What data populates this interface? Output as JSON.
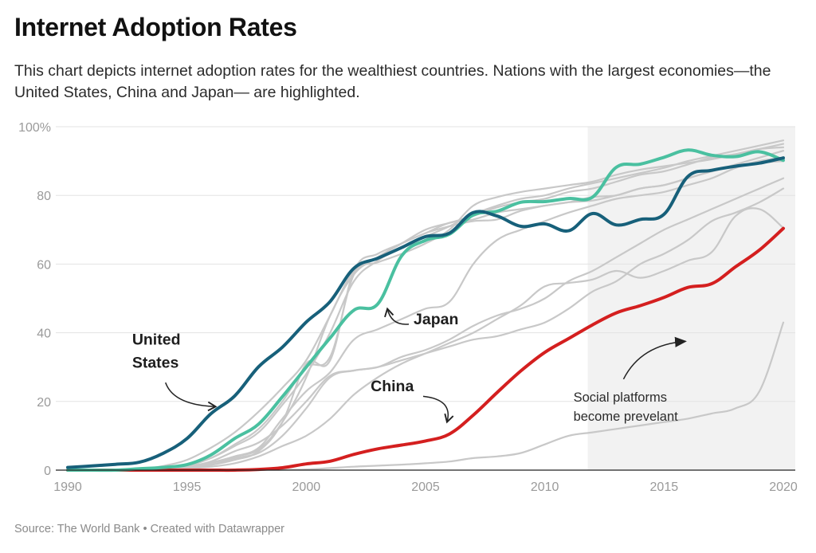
{
  "header": {
    "title": "Internet Adoption Rates",
    "subtitle": "This chart depicts internet adoption rates for the wealthiest countries. Nations with the largest economies—the United States, China and Japan— are highlighted."
  },
  "footer": {
    "source": "Source: The World Bank • Created with Datawrapper"
  },
  "chart_data": {
    "type": "line",
    "title": "Internet Adoption Rates",
    "xlabel": "",
    "ylabel": "",
    "x": [
      1990,
      1991,
      1992,
      1993,
      1994,
      1995,
      1996,
      1997,
      1998,
      1999,
      2000,
      2001,
      2002,
      2003,
      2004,
      2005,
      2006,
      2007,
      2008,
      2009,
      2010,
      2011,
      2012,
      2013,
      2014,
      2015,
      2016,
      2017,
      2018,
      2019,
      2020
    ],
    "xlim": [
      1990,
      2020
    ],
    "ylim": [
      0,
      100
    ],
    "x_ticks": [
      {
        "value": 1990,
        "label": "1990"
      },
      {
        "value": 1995,
        "label": "1995"
      },
      {
        "value": 2000,
        "label": "2000"
      },
      {
        "value": 2005,
        "label": "2005"
      },
      {
        "value": 2010,
        "label": "2010"
      },
      {
        "value": 2015,
        "label": "2015"
      },
      {
        "value": 2020,
        "label": "2020"
      }
    ],
    "y_ticks": [
      {
        "value": 0,
        "label": "0"
      },
      {
        "value": 20,
        "label": "20"
      },
      {
        "value": 40,
        "label": "40"
      },
      {
        "value": 60,
        "label": "60"
      },
      {
        "value": 80,
        "label": "80"
      },
      {
        "value": 100,
        "label": "100%"
      }
    ],
    "grid": true,
    "highlight_range": {
      "from": 2011.8,
      "to": 2020.7,
      "color": "#f2f2f2"
    },
    "colors": {
      "background_series": "#c8c8c8",
      "United States": "#17607a",
      "Japan": "#4ac0a0",
      "China": "#d41f1f"
    },
    "background_series": [
      {
        "name": "other-1",
        "values": [
          0,
          0,
          0.1,
          0.3,
          1.2,
          3,
          6.5,
          11,
          17,
          24,
          32,
          45,
          58,
          60.5,
          63,
          66,
          70,
          77,
          79.5,
          81,
          82,
          83,
          84,
          86,
          87.5,
          88.5,
          89.5,
          90.5,
          92,
          93.5,
          95
        ]
      },
      {
        "name": "other-2",
        "values": [
          0,
          0,
          0,
          0.2,
          0.6,
          1.2,
          3.5,
          7,
          11,
          19,
          28,
          40,
          55,
          61,
          65,
          68,
          71,
          74.5,
          77,
          79,
          80,
          82,
          83.5,
          85,
          86.5,
          88,
          90,
          91.5,
          93,
          94.5,
          96
        ]
      },
      {
        "name": "other-3",
        "values": [
          0,
          0,
          0,
          0.1,
          0.3,
          0.8,
          2,
          4,
          6,
          14,
          27,
          45,
          57,
          62,
          66,
          70,
          72,
          74,
          76.5,
          78,
          79,
          81,
          82,
          84,
          86,
          87,
          89,
          91,
          92,
          93.5,
          94
        ]
      },
      {
        "name": "other-4",
        "values": [
          0,
          0,
          0,
          0.1,
          0.3,
          0.8,
          1.5,
          3,
          5.5,
          14,
          31,
          32,
          58,
          63,
          66,
          69,
          71,
          72.5,
          73,
          75.5,
          77,
          78,
          79.5,
          80,
          82,
          83,
          85,
          87,
          88.5,
          89.5,
          90
        ]
      },
      {
        "name": "other-5",
        "values": [
          0,
          0,
          0,
          0.1,
          0.2,
          0.6,
          1.5,
          3.5,
          5,
          10,
          18,
          27,
          29,
          30,
          33,
          35,
          38,
          42,
          45,
          47,
          50,
          55,
          58,
          62,
          66,
          70,
          73,
          76,
          79,
          82,
          85
        ]
      },
      {
        "name": "other-6",
        "values": [
          0,
          0,
          0,
          0.1,
          0.3,
          1,
          2.2,
          4,
          6.5,
          15,
          23,
          28.5,
          38,
          41,
          44,
          47,
          49,
          60,
          67,
          70,
          72.5,
          75,
          77,
          79,
          80,
          81,
          83,
          85,
          88,
          90,
          91
        ]
      },
      {
        "name": "other-7",
        "values": [
          0,
          0,
          0,
          0.1,
          0.2,
          0.5,
          1,
          2,
          4,
          7,
          10,
          15,
          22,
          27,
          31,
          34,
          37,
          40,
          44,
          48,
          53.5,
          54.5,
          55.5,
          58,
          56,
          58,
          61,
          63.5,
          74,
          76,
          70.5
        ]
      },
      {
        "name": "other-8",
        "values": [
          0,
          0,
          0,
          0,
          0,
          0,
          0,
          0,
          0,
          0.1,
          0.2,
          0.6,
          1,
          1.3,
          1.6,
          2,
          2.5,
          3.5,
          4,
          5,
          7.5,
          10,
          11,
          12,
          13,
          14,
          15,
          16.5,
          18,
          23,
          43
        ]
      },
      {
        "name": "other-9",
        "values": [
          0,
          0,
          0,
          0.1,
          0.4,
          1,
          2.5,
          5.5,
          8,
          13,
          20,
          27.5,
          29,
          30,
          32,
          34,
          36,
          38,
          39,
          41,
          43,
          47,
          52,
          55,
          60,
          63,
          67,
          72.5,
          75,
          78,
          82
        ]
      },
      {
        "name": "other-10",
        "values": [
          0,
          0,
          0,
          0.2,
          0.6,
          1.5,
          3.5,
          7.5,
          12,
          20,
          30,
          33,
          57,
          62,
          66,
          69,
          72,
          73,
          75,
          76,
          77,
          78,
          78.5,
          80,
          82,
          83,
          85,
          87,
          89,
          91,
          93
        ]
      }
    ],
    "series": [
      {
        "name": "United States",
        "values": [
          0.8,
          1.2,
          1.7,
          2.3,
          4.9,
          9.2,
          16.4,
          21.6,
          30.1,
          35.8,
          43.1,
          49.1,
          58.8,
          61.7,
          64.8,
          68,
          69,
          75,
          74,
          71,
          71.7,
          69.7,
          74.7,
          71.4,
          73,
          74.5,
          85.5,
          87.3,
          88.5,
          89.4,
          90.9
        ]
      },
      {
        "name": "Japan",
        "values": [
          0,
          0,
          0,
          0.4,
          0.8,
          1.6,
          4.4,
          9.2,
          13.4,
          21.4,
          30,
          38.5,
          46.6,
          48.4,
          62.4,
          66.9,
          68.7,
          74.3,
          75.4,
          78,
          78.2,
          79.1,
          79.5,
          88.2,
          89.1,
          91.1,
          93.2,
          91.7,
          91.3,
          92.7,
          90.2
        ]
      },
      {
        "name": "China",
        "values": [
          0,
          0,
          0,
          0,
          0,
          0,
          0,
          0,
          0.2,
          0.7,
          1.8,
          2.6,
          4.6,
          6.2,
          7.3,
          8.5,
          10.5,
          16,
          22.6,
          28.9,
          34.3,
          38.3,
          42.3,
          45.8,
          47.9,
          50.3,
          53.2,
          54.3,
          59.2,
          64.1,
          70.4
        ]
      }
    ],
    "annotations": [
      {
        "id": "us",
        "lines": [
          "United",
          "States"
        ],
        "bold": true,
        "x": 1992.7,
        "y": 36.5,
        "arrow_to": [
          1996.2,
          18.5
        ],
        "arrow_from": [
          1994.1,
          25.5
        ]
      },
      {
        "id": "japan",
        "lines": [
          "Japan"
        ],
        "bold": true,
        "x": 2004.5,
        "y": 42.5,
        "arrow_to": [
          2003.4,
          47
        ],
        "arrow_from": [
          2004.3,
          42.5
        ]
      },
      {
        "id": "china",
        "lines": [
          "China"
        ],
        "bold": true,
        "x": 2002.7,
        "y": 23,
        "arrow_to": [
          2005.9,
          14
        ],
        "arrow_from": [
          2004.9,
          21.5
        ]
      },
      {
        "id": "social",
        "lines": [
          "Social platforms",
          "become prevelant"
        ],
        "bold": false,
        "x": 2011.2,
        "y": 20,
        "arrow_to": [
          2015.9,
          37.5
        ],
        "arrow_from": [
          2013.3,
          26.5
        ]
      }
    ]
  }
}
